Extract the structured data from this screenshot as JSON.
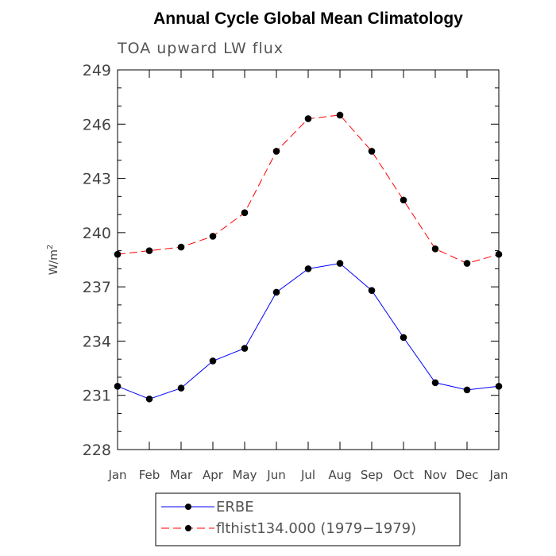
{
  "chart_data": {
    "type": "line",
    "title": "Annual Cycle Global Mean Climatology",
    "subtitle": "TOA upward LW flux",
    "ylabel": "W/m",
    "ylabel_superscript": "2",
    "xlabel": "",
    "categories": [
      "Jan",
      "Feb",
      "Mar",
      "Apr",
      "May",
      "Jun",
      "Jul",
      "Aug",
      "Sep",
      "Oct",
      "Nov",
      "Dec",
      "Jan"
    ],
    "ylim": [
      228,
      249
    ],
    "yticks": [
      228,
      231,
      234,
      237,
      240,
      243,
      246,
      249
    ],
    "grid": false,
    "legend_placement": "bottom-center",
    "series": [
      {
        "name": "ERBE",
        "color": "#0000ff",
        "line_style": "solid",
        "marker": "filled-circle",
        "values": [
          231.5,
          230.8,
          231.4,
          232.9,
          233.6,
          236.7,
          238.0,
          238.3,
          236.8,
          234.2,
          231.7,
          231.3,
          231.5
        ]
      },
      {
        "name": "flthist134.000 (1979−1979)",
        "color": "#ff0000",
        "line_style": "dashed",
        "marker": "filled-circle",
        "values": [
          238.8,
          239.0,
          239.2,
          239.8,
          241.1,
          244.5,
          246.3,
          246.5,
          244.5,
          241.8,
          239.1,
          238.3,
          238.8
        ]
      }
    ]
  }
}
